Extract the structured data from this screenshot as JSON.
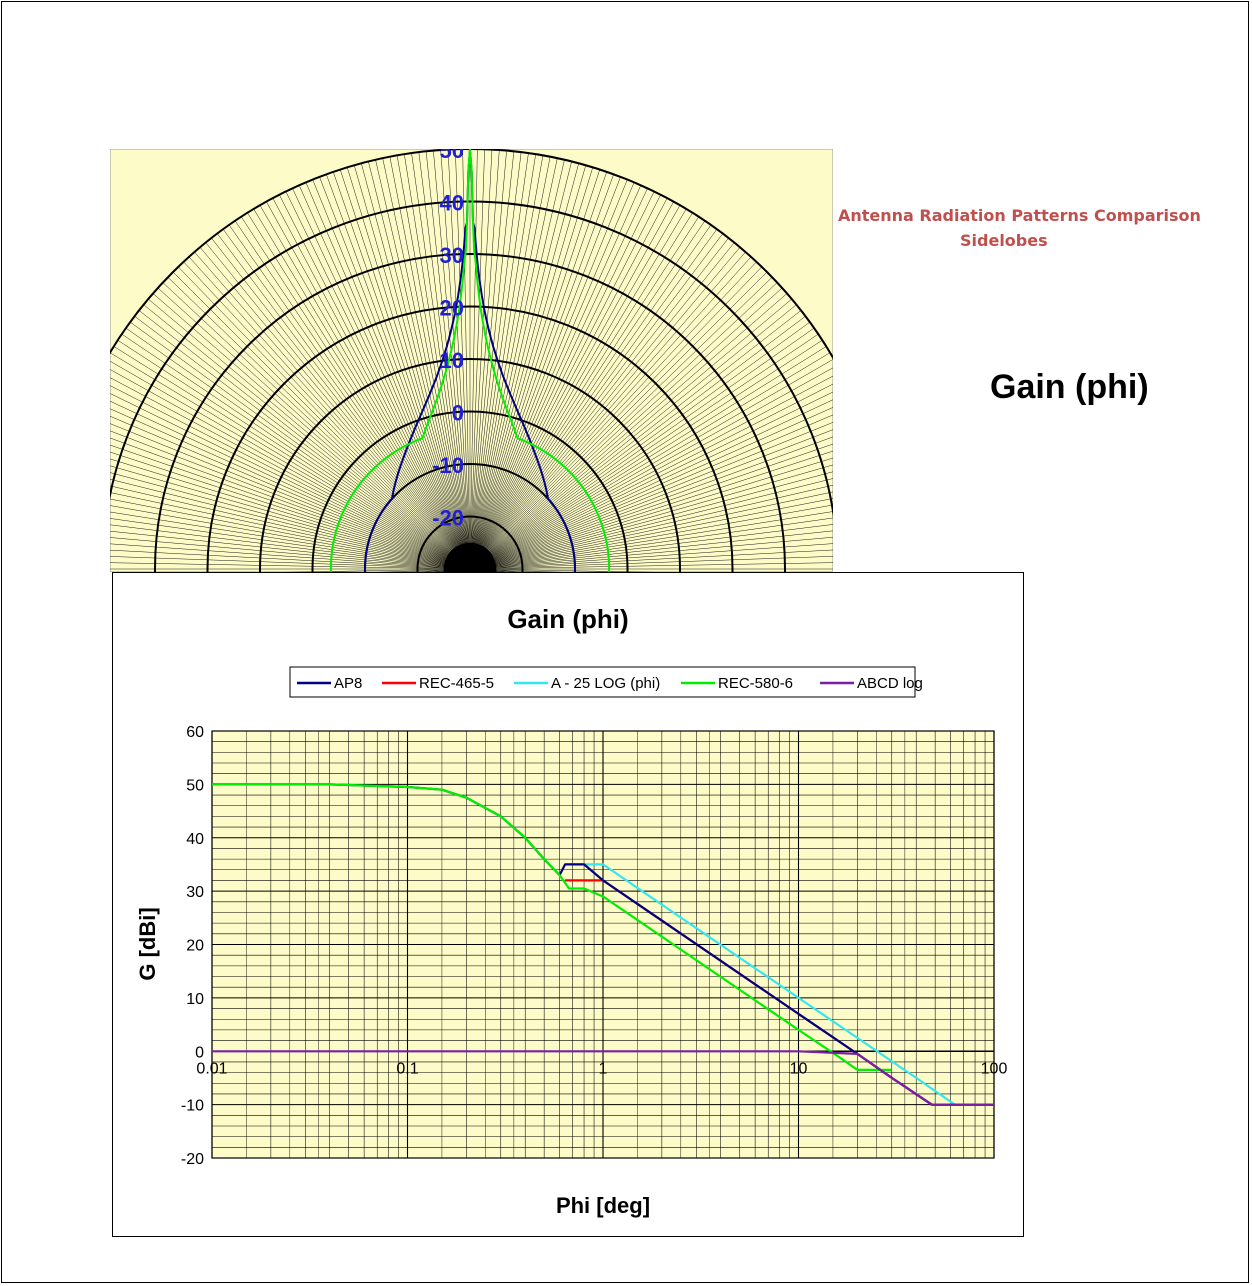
{
  "colors": {
    "plot_bg": "#fdfcc8",
    "grid": "#000000",
    "radial_label": "#1f1fd6",
    "side_title": "#c0504d"
  },
  "side": {
    "title_line1": "Antenna Radiation Patterns Comparison",
    "title_line2": "Sidelobes",
    "gain_label": "Gain (phi)"
  },
  "polar": {
    "radial_ticks": [
      "50",
      "40",
      "30",
      "20",
      "10",
      "0",
      "-10",
      "-20"
    ],
    "r_values": [
      50,
      40,
      30,
      20,
      10,
      0,
      -10,
      -20
    ],
    "r_min": -30,
    "r_max": 50,
    "pattern_series": [
      "AP8",
      "REC-580-6"
    ]
  },
  "chart_data": {
    "type": "line",
    "title": "Gain (phi)",
    "xlabel": "Phi [deg]",
    "ylabel": "G [dBi]",
    "x_scale": "log",
    "xlim": [
      0.01,
      100
    ],
    "ylim": [
      -20,
      60
    ],
    "x_ticks": [
      "0.01",
      "0.1",
      "1",
      "10",
      "100"
    ],
    "y_ticks": [
      "60",
      "50",
      "40",
      "30",
      "20",
      "10",
      "0",
      "-10",
      "-20"
    ],
    "grid": true,
    "legend_position": "top",
    "series": [
      {
        "name": "AP8",
        "color": "#000080",
        "points": [
          [
            0.01,
            50
          ],
          [
            0.04,
            50
          ],
          [
            0.1,
            49.5
          ],
          [
            0.15,
            49
          ],
          [
            0.2,
            47.5
          ],
          [
            0.3,
            44
          ],
          [
            0.4,
            40
          ],
          [
            0.5,
            36
          ],
          [
            0.6,
            33
          ],
          [
            0.64,
            35
          ],
          [
            0.8,
            35
          ],
          [
            1,
            32
          ],
          [
            10,
            7
          ],
          [
            20,
            -0.5
          ],
          [
            30,
            -5
          ],
          [
            48,
            -10
          ],
          [
            100,
            -10
          ]
        ]
      },
      {
        "name": "REC-465-5",
        "color": "#ff0000",
        "points": [
          [
            0.64,
            32
          ],
          [
            1,
            32
          ],
          [
            10,
            7
          ],
          [
            20,
            -0.5
          ],
          [
            30,
            -5
          ],
          [
            48,
            -10
          ],
          [
            100,
            -10
          ]
        ]
      },
      {
        "name": "A - 25 LOG (phi)",
        "color": "#33e6f0",
        "points": [
          [
            0.64,
            35
          ],
          [
            1,
            35
          ],
          [
            10,
            10
          ],
          [
            20,
            2.5
          ],
          [
            40,
            -5
          ],
          [
            63,
            -10
          ]
        ]
      },
      {
        "name": "REC-580-6",
        "color": "#00ee00",
        "points": [
          [
            0.01,
            50
          ],
          [
            0.04,
            50
          ],
          [
            0.1,
            49.5
          ],
          [
            0.15,
            49
          ],
          [
            0.2,
            47.5
          ],
          [
            0.3,
            44
          ],
          [
            0.4,
            40
          ],
          [
            0.5,
            36
          ],
          [
            0.6,
            33
          ],
          [
            0.67,
            30.5
          ],
          [
            0.8,
            30.5
          ],
          [
            1,
            29
          ],
          [
            10,
            4
          ],
          [
            16,
            -1
          ],
          [
            20,
            -3.5
          ],
          [
            30,
            -3.5
          ]
        ]
      },
      {
        "name": "ABCD log",
        "color": "#7a1fa2",
        "points": [
          [
            0.01,
            0
          ],
          [
            10,
            0
          ],
          [
            20,
            -0.5
          ],
          [
            30,
            -5
          ],
          [
            48,
            -10
          ],
          [
            100,
            -10
          ]
        ]
      }
    ]
  }
}
